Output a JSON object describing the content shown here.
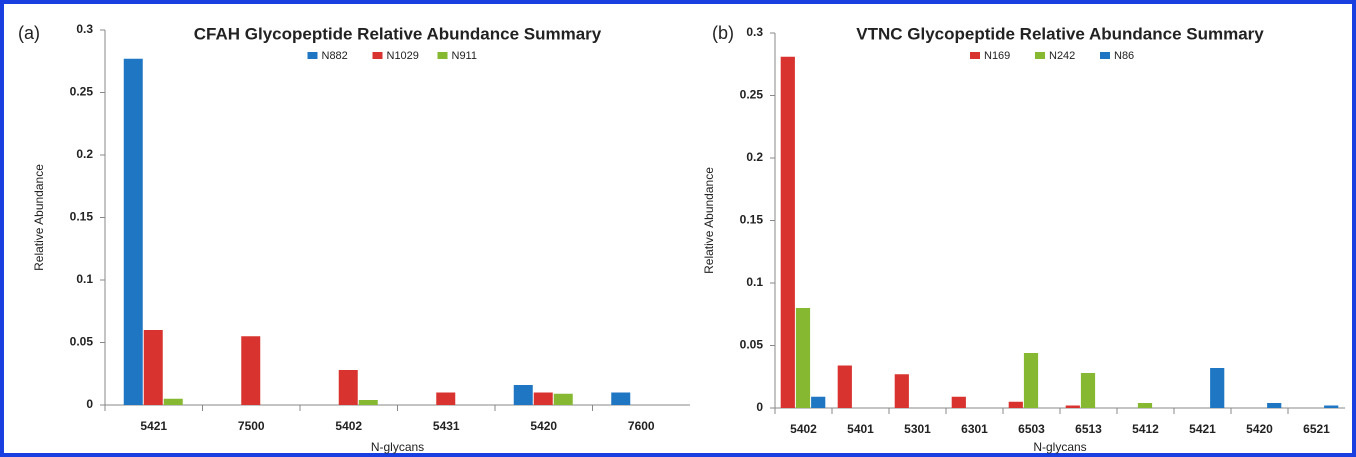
{
  "chart_data": [
    {
      "type": "bar",
      "panel": "(a)",
      "title": "CFAH Glycopeptide Relative Abundance Summary",
      "x_label": "N-glycans",
      "y_label": "Relative Abundance",
      "categories": [
        "5421",
        "7500",
        "5402",
        "5431",
        "5420",
        "7600"
      ],
      "series": [
        {
          "name": "N882",
          "color": "#1f77c4",
          "values": [
            0.277,
            null,
            null,
            null,
            0.016,
            0.01
          ]
        },
        {
          "name": "N1029",
          "color": "#d9332f",
          "values": [
            0.06,
            0.055,
            0.028,
            0.01,
            0.01,
            null
          ]
        },
        {
          "name": "N911",
          "color": "#86b832",
          "values": [
            0.005,
            null,
            0.004,
            null,
            0.009,
            null
          ]
        }
      ],
      "ylim": [
        0,
        0.3
      ],
      "yticks": [
        0,
        0.05,
        0.1,
        0.15,
        0.2,
        0.25,
        0.3
      ]
    },
    {
      "type": "bar",
      "panel": "(b)",
      "title": "VTNC Glycopeptide Relative Abundance Summary",
      "x_label": "N-glycans",
      "y_label": "Relative Abundance",
      "categories": [
        "5402",
        "5401",
        "5301",
        "6301",
        "6503",
        "6513",
        "5412",
        "5421",
        "5420",
        "6521"
      ],
      "series": [
        {
          "name": "N169",
          "color": "#d9332f",
          "values": [
            0.281,
            0.034,
            0.027,
            0.009,
            0.005,
            0.002,
            null,
            null,
            null,
            null
          ]
        },
        {
          "name": "N242",
          "color": "#86b832",
          "values": [
            0.08,
            null,
            null,
            null,
            0.044,
            0.028,
            0.004,
            null,
            null,
            null
          ]
        },
        {
          "name": "N86",
          "color": "#1f77c4",
          "values": [
            0.009,
            null,
            null,
            null,
            null,
            null,
            null,
            0.032,
            0.004,
            0.002
          ]
        }
      ],
      "ylim": [
        0,
        0.3
      ],
      "yticks": [
        0,
        0.05,
        0.1,
        0.15,
        0.2,
        0.25,
        0.3
      ]
    }
  ]
}
